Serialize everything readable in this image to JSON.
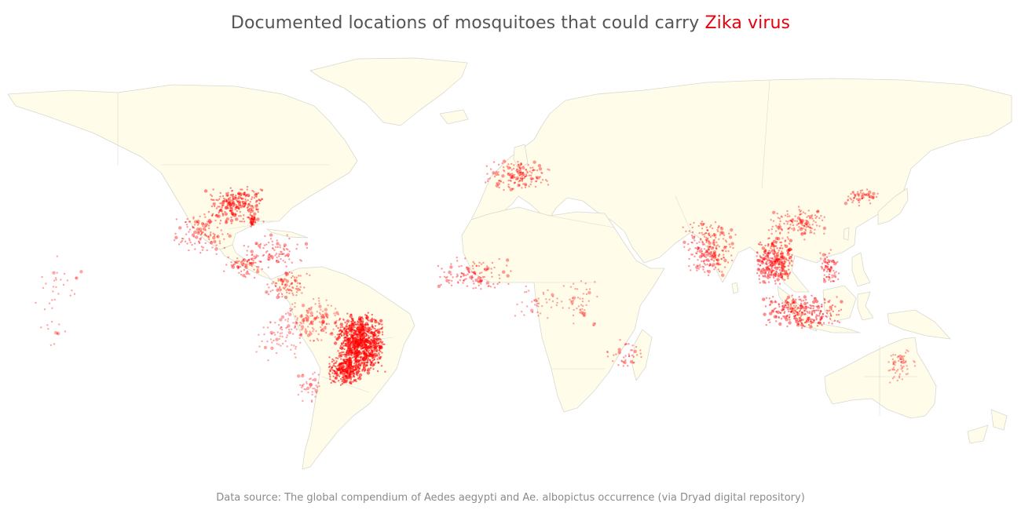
{
  "title": {
    "prefix": "Documented locations of mosquitoes that could carry ",
    "highlight": "Zika virus",
    "highlight_color": "#e8000b"
  },
  "source_note": "Data source: The global compendium of Aedes aegypti and Ae. albopictus occurrence (via Dryad digital repository)",
  "colors": {
    "land": "#fffdea",
    "coastline": "#d8d8d0",
    "points": "#ff0000"
  },
  "map_data": {
    "projection": "equirectangular",
    "lon_range": [
      -170,
      190
    ],
    "lat_range": [
      -60,
      85
    ],
    "occurrence_clusters": [
      {
        "region": "Eastern United States",
        "lon": [
          -98,
          -76
        ],
        "lat": [
          26,
          39
        ],
        "n": 260,
        "density": "high"
      },
      {
        "region": "Florida",
        "lon": [
          -82,
          -80
        ],
        "lat": [
          25,
          30
        ],
        "n": 40,
        "density": "high"
      },
      {
        "region": "Mexico",
        "lon": [
          -110,
          -88
        ],
        "lat": [
          15,
          30
        ],
        "n": 120,
        "density": "medium"
      },
      {
        "region": "Central America",
        "lon": [
          -92,
          -77
        ],
        "lat": [
          8,
          17
        ],
        "n": 70,
        "density": "medium"
      },
      {
        "region": "Caribbean",
        "lon": [
          -85,
          -61
        ],
        "lat": [
          11,
          23
        ],
        "n": 90,
        "density": "medium"
      },
      {
        "region": "Venezuela & Colombia",
        "lon": [
          -77,
          -60
        ],
        "lat": [
          1,
          11
        ],
        "n": 90,
        "density": "medium"
      },
      {
        "region": "Amazon basin",
        "lon": [
          -72,
          -48
        ],
        "lat": [
          -14,
          2
        ],
        "n": 160,
        "density": "low"
      },
      {
        "region": "Eastern Brazil",
        "lon": [
          -52,
          -34
        ],
        "lat": [
          -24,
          -3
        ],
        "n": 900,
        "density": "very high"
      },
      {
        "region": "Southern Brazil",
        "lon": [
          -55,
          -42
        ],
        "lat": [
          -28,
          -18
        ],
        "n": 250,
        "density": "very high"
      },
      {
        "region": "Peru & Bolivia",
        "lon": [
          -80,
          -62
        ],
        "lat": [
          -20,
          -2
        ],
        "n": 60,
        "density": "low"
      },
      {
        "region": "Argentina & Paraguay",
        "lon": [
          -66,
          -55
        ],
        "lat": [
          -35,
          -22
        ],
        "n": 40,
        "density": "low"
      },
      {
        "region": "Southern Europe",
        "lon": [
          0,
          26
        ],
        "lat": [
          37,
          48
        ],
        "n": 160,
        "density": "medium"
      },
      {
        "region": "West Africa",
        "lon": [
          -17,
          12
        ],
        "lat": [
          3,
          15
        ],
        "n": 120,
        "density": "medium"
      },
      {
        "region": "Central Africa",
        "lon": [
          8,
          30
        ],
        "lat": [
          -6,
          6
        ],
        "n": 40,
        "density": "low"
      },
      {
        "region": "East Africa",
        "lon": [
          28,
          42
        ],
        "lat": [
          -10,
          10
        ],
        "n": 50,
        "density": "low"
      },
      {
        "region": "Madagascar & islands",
        "lon": [
          43,
          58
        ],
        "lat": [
          -22,
          -12
        ],
        "n": 40,
        "density": "medium"
      },
      {
        "region": "India",
        "lon": [
          70,
          90
        ],
        "lat": [
          8,
          28
        ],
        "n": 240,
        "density": "medium"
      },
      {
        "region": "Southeast Asia",
        "lon": [
          96,
          110
        ],
        "lat": [
          5,
          22
        ],
        "n": 300,
        "density": "high"
      },
      {
        "region": "Southern China & Taiwan",
        "lon": [
          100,
          122
        ],
        "lat": [
          20,
          32
        ],
        "n": 140,
        "density": "medium"
      },
      {
        "region": "Japan & Korea",
        "lon": [
          127,
          141
        ],
        "lat": [
          32,
          38
        ],
        "n": 60,
        "density": "medium"
      },
      {
        "region": "Philippines",
        "lon": [
          118,
          126
        ],
        "lat": [
          6,
          18
        ],
        "n": 80,
        "density": "medium"
      },
      {
        "region": "Indonesia",
        "lon": [
          98,
          128
        ],
        "lat": [
          -9,
          3
        ],
        "n": 280,
        "density": "high"
      },
      {
        "region": "Northeastern Australia",
        "lon": [
          142,
          153
        ],
        "lat": [
          -27,
          -15
        ],
        "n": 60,
        "density": "low"
      },
      {
        "region": "Pacific islands",
        "lon": [
          -160,
          -140
        ],
        "lat": [
          -22,
          21
        ],
        "n": 40,
        "density": "low"
      }
    ]
  }
}
